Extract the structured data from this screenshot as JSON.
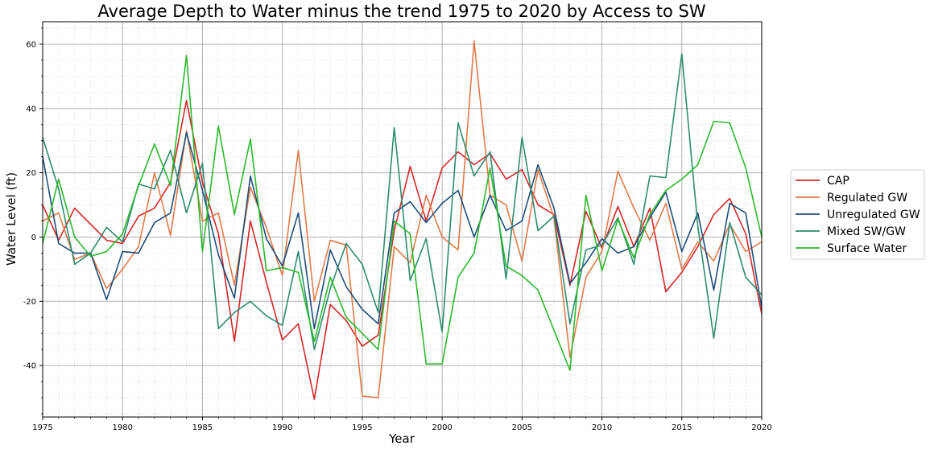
{
  "chart_data": {
    "type": "line",
    "title": "Average Depth to Water minus the trend 1975 to 2020 by Access to SW",
    "xlabel": "Year",
    "ylabel": "Water Level (ft)",
    "xlim": [
      1975,
      2020
    ],
    "ylim": [
      -56,
      67
    ],
    "x_ticks": [
      1975,
      1980,
      1985,
      1990,
      1995,
      2000,
      2005,
      2010,
      2015,
      2020
    ],
    "y_ticks": [
      -40,
      -20,
      0,
      20,
      40,
      60
    ],
    "grid": true,
    "legend_position": "right",
    "x": [
      1975,
      1976,
      1977,
      1978,
      1979,
      1980,
      1981,
      1982,
      1983,
      1984,
      1985,
      1986,
      1987,
      1988,
      1989,
      1990,
      1991,
      1992,
      1993,
      1994,
      1995,
      1996,
      1997,
      1998,
      1999,
      2000,
      2001,
      2002,
      2003,
      2004,
      2005,
      2006,
      2007,
      2008,
      2009,
      2010,
      2011,
      2012,
      2013,
      2014,
      2015,
      2016,
      2017,
      2018,
      2019,
      2020
    ],
    "series": [
      {
        "name": "CAP",
        "color": "#d62728",
        "values": [
          10,
          -1,
          9,
          4,
          -1,
          -2,
          6.5,
          9,
          17,
          42.5,
          17,
          1,
          -32.5,
          5,
          -14,
          -32,
          -27,
          -50.5,
          -21,
          -26,
          -34,
          -30.5,
          2,
          22,
          5,
          21.5,
          26.5,
          22.5,
          26,
          18,
          21,
          10,
          7,
          -15,
          8,
          -3.5,
          9.5,
          -3,
          9,
          -17,
          -11,
          -3,
          7,
          12,
          1,
          -24
        ]
      },
      {
        "name": "Regulated GW",
        "color": "#e07b4a",
        "values": [
          5,
          7.5,
          -7,
          -5,
          -16,
          -10,
          -3,
          20,
          0.5,
          33,
          5,
          7.5,
          -15,
          15.5,
          3,
          -12,
          27,
          -20,
          -1,
          -2.5,
          -49.5,
          -50,
          -3,
          -8,
          13,
          0,
          -4,
          61,
          13,
          10,
          -7.5,
          21,
          6,
          -37.5,
          -12.5,
          -4.5,
          20.5,
          9,
          -1,
          10.5,
          -10,
          -1.5,
          -7.5,
          4,
          -4.5,
          -1.5
        ]
      },
      {
        "name": "Unregulated GW",
        "color": "#1f4e79",
        "values": [
          25,
          -2,
          -5,
          -5,
          -19.5,
          -4.5,
          -5,
          4.5,
          7.5,
          32.5,
          14.5,
          -5.5,
          -19,
          19,
          -0.5,
          -9,
          7.5,
          -28.5,
          -4,
          -15.5,
          -22.5,
          -27,
          7.5,
          11,
          4.5,
          10.5,
          14.5,
          0,
          13,
          2,
          5,
          22.5,
          9,
          -14.5,
          -8,
          -0.5,
          -5,
          -3,
          6,
          14,
          -4.5,
          7.5,
          -16.5,
          10.5,
          7.5,
          -22
        ]
      },
      {
        "name": "Mixed SW/GW",
        "color": "#2e8b6e",
        "values": [
          31,
          15,
          -8.5,
          -5,
          3,
          -1.5,
          16.5,
          15,
          27,
          7.5,
          23,
          -28.5,
          -23.5,
          -20,
          -24.5,
          -27.5,
          -4.5,
          -35,
          -16,
          -2,
          -8.5,
          -23.5,
          34,
          -13.5,
          -0.5,
          -29.5,
          35.5,
          19,
          26.5,
          -13,
          31,
          2,
          6.5,
          -27,
          -4,
          -2.5,
          6,
          -8.5,
          19,
          18.5,
          57,
          3.5,
          -31.5,
          4.5,
          -12.5,
          -18
        ]
      },
      {
        "name": "Surface Water",
        "color": "#2cb82c",
        "values": [
          -2,
          18,
          0,
          -6,
          -4.5,
          1,
          16,
          29,
          16,
          56.5,
          -4.5,
          34.5,
          7,
          30.5,
          -10.5,
          -9.5,
          -11,
          -32.5,
          -12.5,
          -25,
          -30,
          -35,
          5,
          1,
          -39.5,
          -39.5,
          -12.5,
          -5,
          21.5,
          -9,
          -12,
          -16.5,
          -29,
          -41.5,
          13,
          -10.5,
          5.5,
          -6.5,
          7,
          14.5,
          18,
          22.5,
          36,
          35.5,
          21.5,
          0
        ]
      }
    ]
  }
}
